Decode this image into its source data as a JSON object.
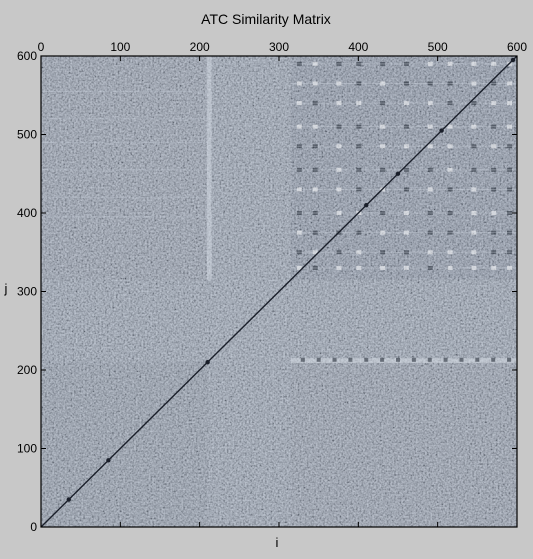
{
  "chart_data": {
    "type": "heatmap",
    "title": "ATC Similarity Matrix",
    "xlabel": "i",
    "ylabel": "j",
    "xlim": [
      0,
      600
    ],
    "ylim": [
      0,
      600
    ],
    "x_ticks": [
      0,
      100,
      200,
      300,
      400,
      500,
      600
    ],
    "y_ticks": [
      0,
      100,
      200,
      300,
      400,
      500,
      600
    ],
    "x_tick_position": "top",
    "grid": false,
    "colormap": "bone",
    "colors": {
      "background": "#c8c8c8",
      "matrix_base": "#8a97ab",
      "diagonal": "#1a1f2a",
      "high_similarity": "#ffffff",
      "low_similarity": "#1e2430"
    },
    "block_boundaries": [
      210,
      315
    ],
    "diagonal": "strong (j = i)"
  }
}
